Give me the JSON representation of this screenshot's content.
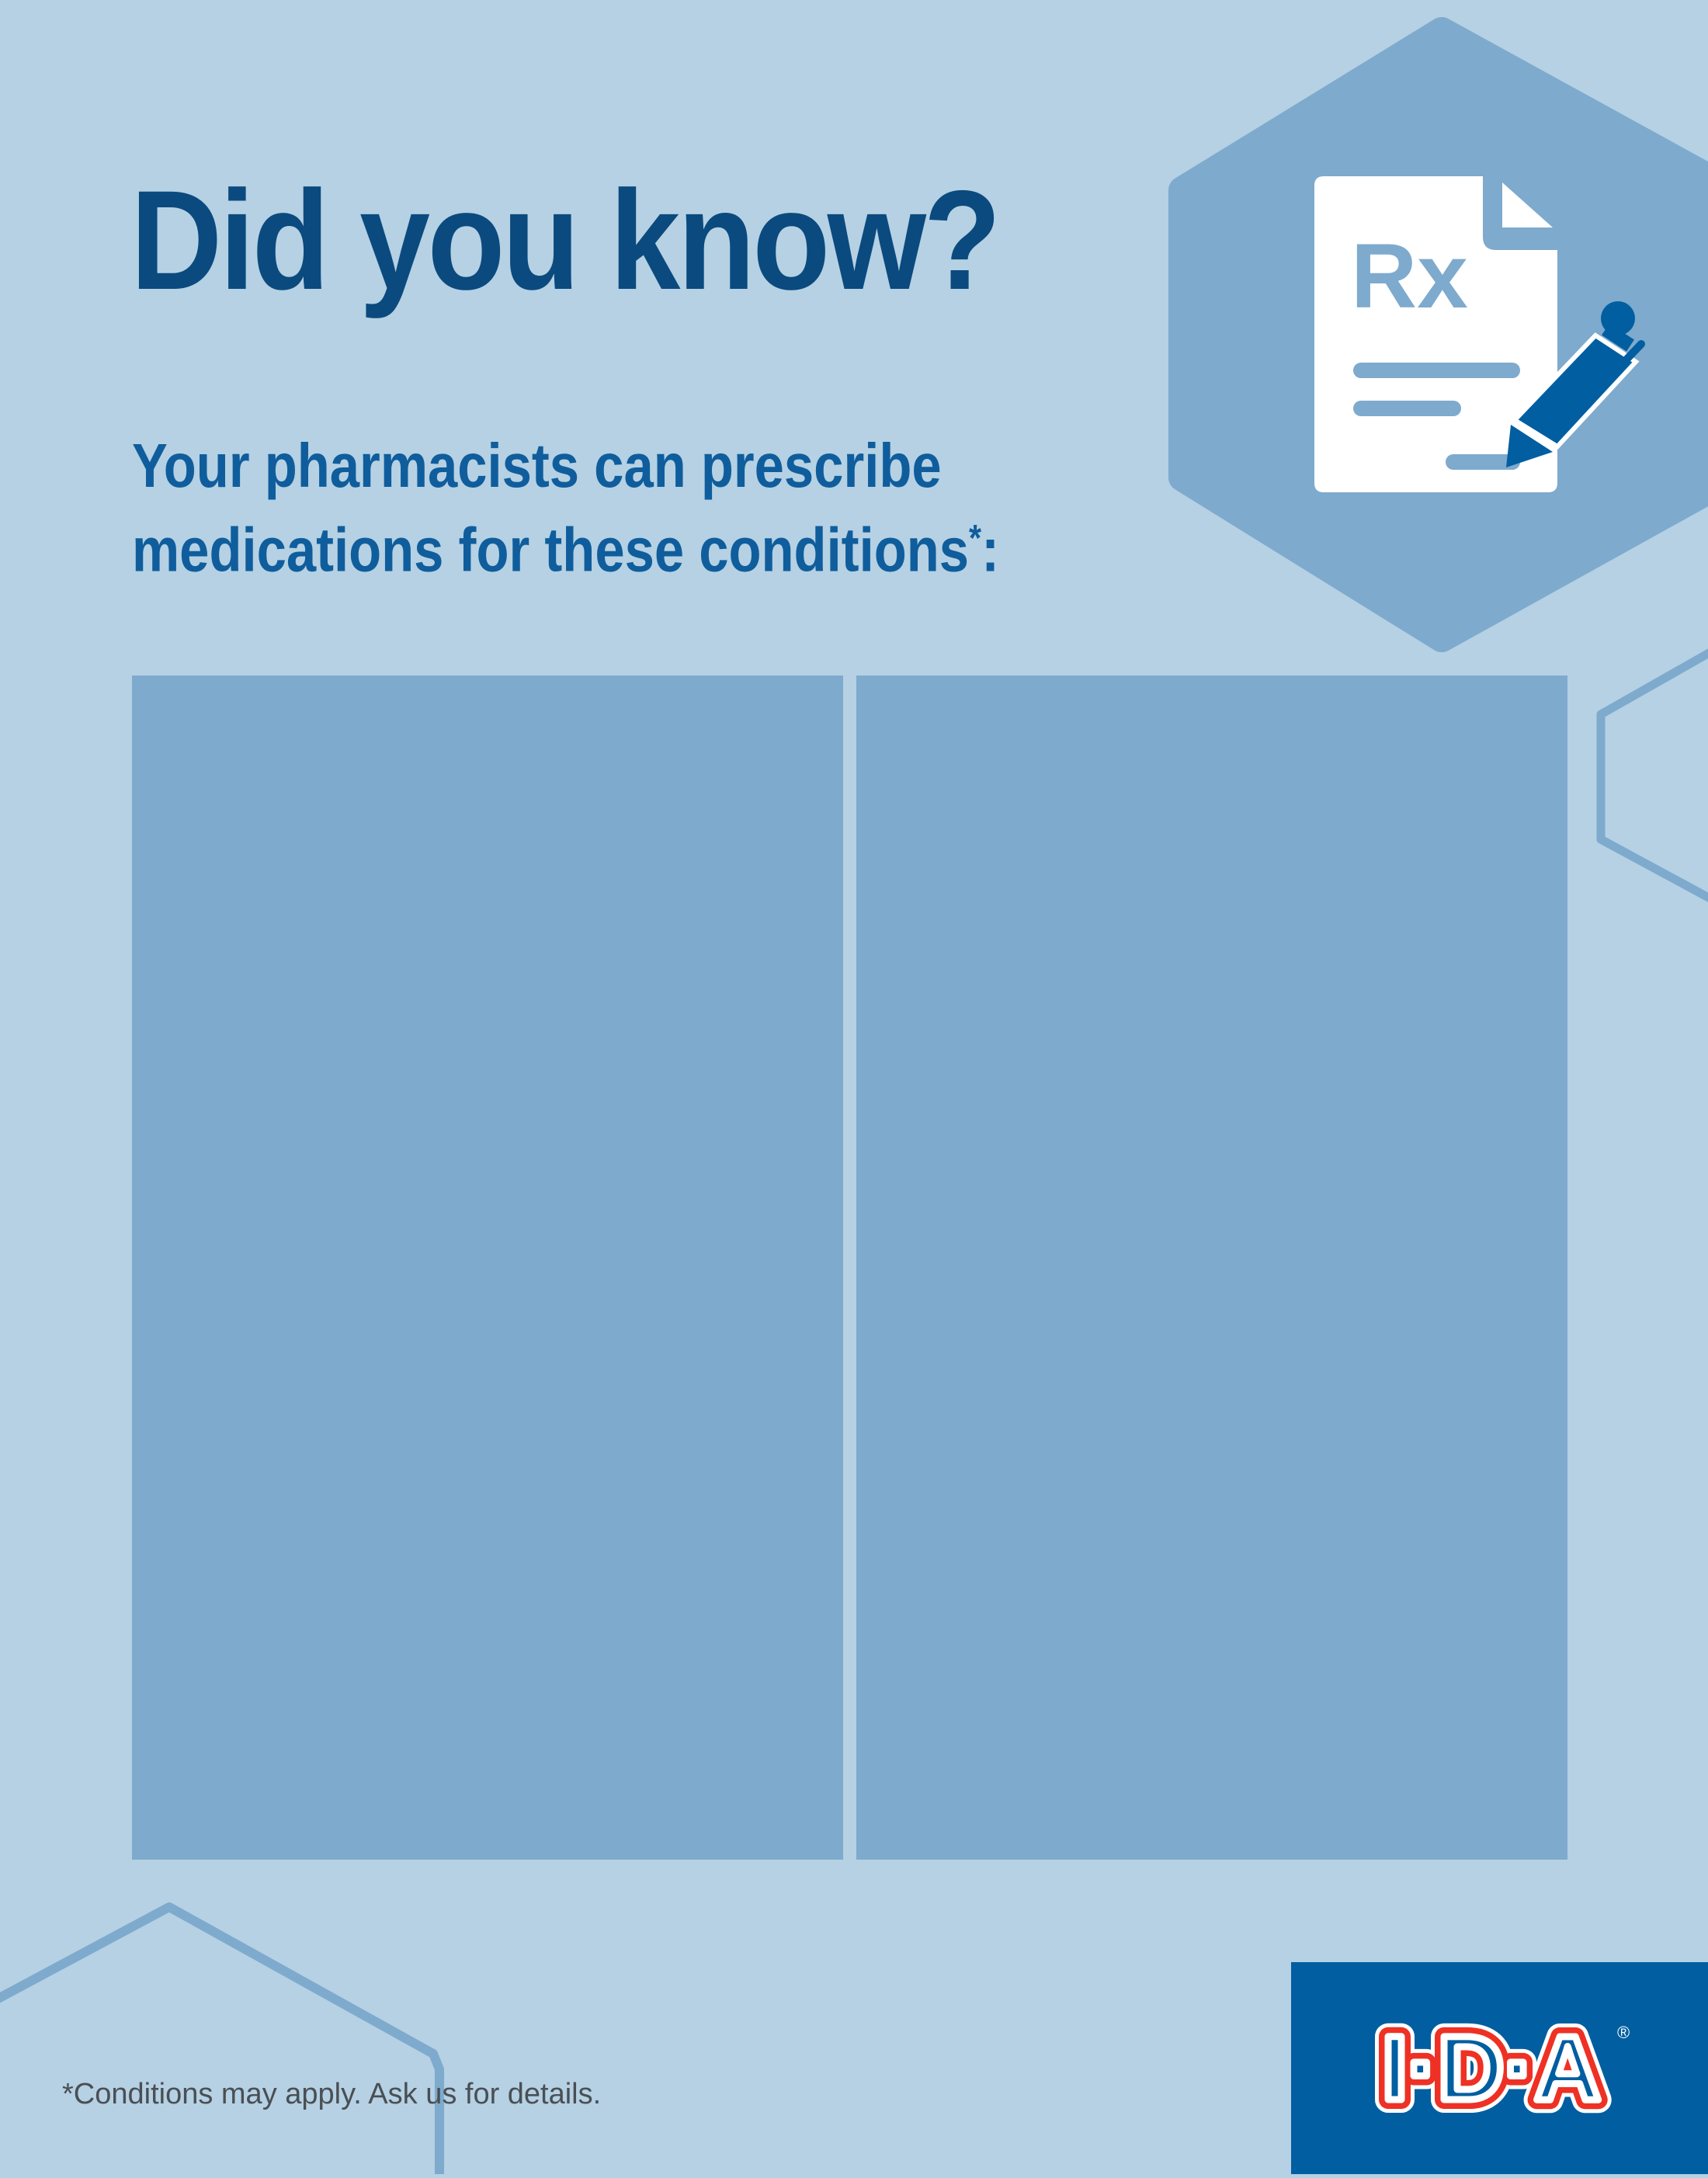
{
  "header": {
    "title": "Did you know?",
    "subtitle_line1": "Your pharmacists can prescribe",
    "subtitle_line2": "medications for these conditions",
    "subtitle_asterisk": "*",
    "subtitle_colon": ":"
  },
  "icon": "prescription-document-with-pen-icon",
  "icon_text": "Rx",
  "panels": [
    {
      "name": "left-panel"
    },
    {
      "name": "right-panel"
    }
  ],
  "footnote": "*Conditions may apply. Ask us for details.",
  "logo": {
    "text": "I·D·A",
    "registered": "®"
  },
  "colors": {
    "background": "#b5d1e3",
    "panel": "#7eaacd",
    "title": "#0b4a7e",
    "subtitle": "#0f5d9c",
    "logo_background": "#005ea1",
    "logo_red": "#ee3124"
  }
}
